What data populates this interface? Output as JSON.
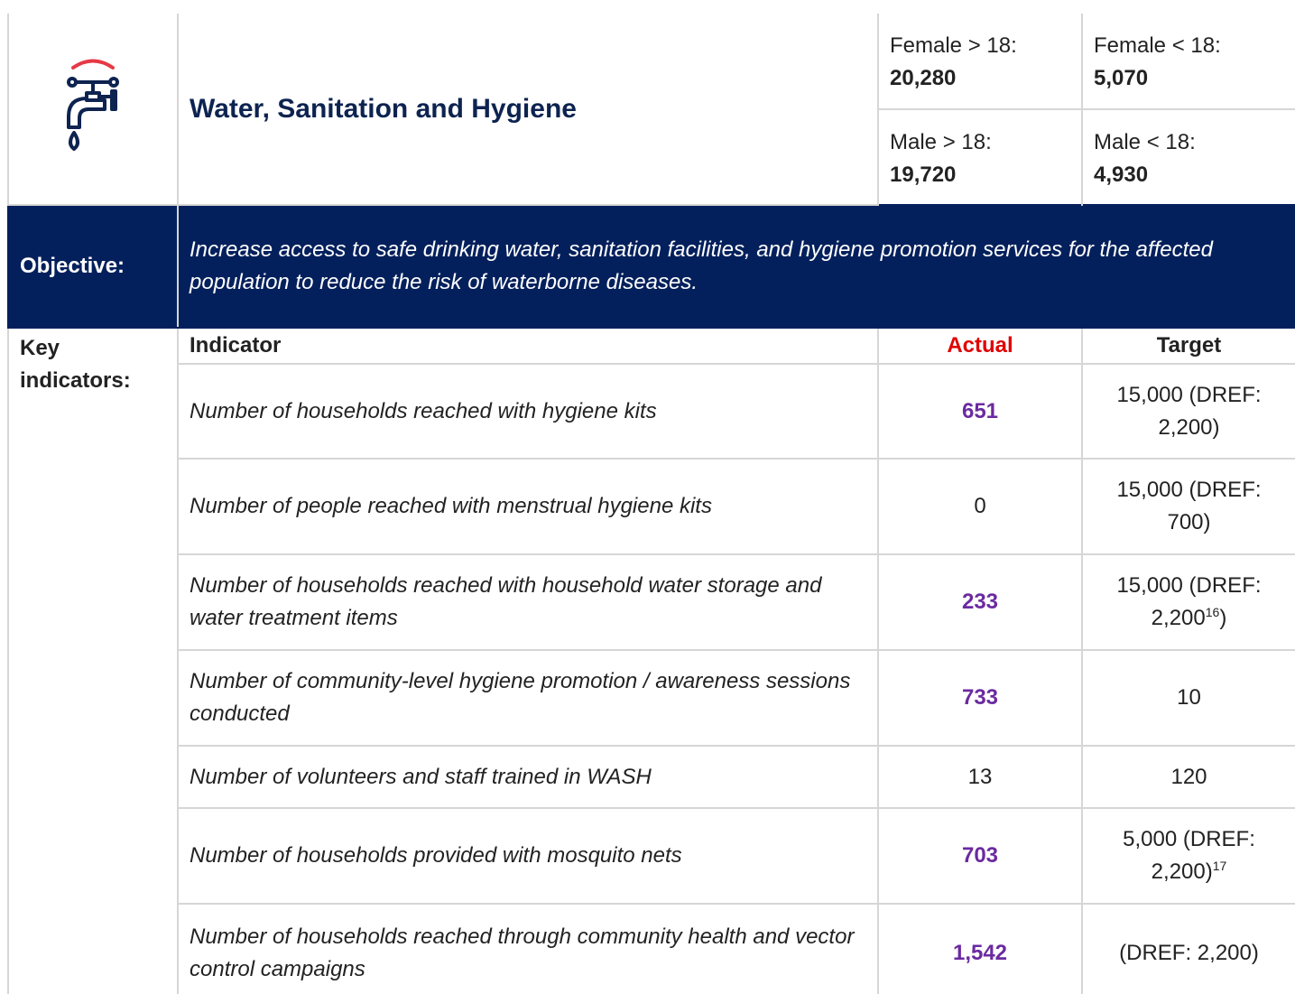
{
  "header": {
    "title": "Water, Sanitation and Hygiene",
    "demographics": [
      {
        "label": "Female > 18:",
        "value": "20,280"
      },
      {
        "label": "Female < 18:",
        "value": "5,070"
      },
      {
        "label": "Male > 18:",
        "value": "19,720"
      },
      {
        "label": "Male < 18:",
        "value": "4,930"
      }
    ]
  },
  "objective": {
    "label": "Objective:",
    "text": "Increase access to safe drinking water, sanitation facilities, and hygiene promotion services for the affected population to reduce the risk of waterborne diseases."
  },
  "indicators": {
    "label": "Key indicators:",
    "columns": [
      "Indicator",
      "Actual",
      "Target"
    ],
    "rows": [
      {
        "indicator": "Number of households reached with hygiene kits",
        "actual": "651",
        "highlight": true,
        "target": [
          "15,000 (DREF: 2,200)"
        ]
      },
      {
        "indicator": "Number of people reached with menstrual hygiene kits",
        "actual": "0",
        "highlight": false,
        "target": [
          "15,000 (DREF: 700)"
        ]
      },
      {
        "indicator": "Number of households reached with household water storage and water treatment items",
        "actual": "233",
        "highlight": true,
        "target": [
          "15,000 (DREF: 2,200",
          {
            "sup": "16"
          },
          ")"
        ]
      },
      {
        "indicator": "Number of community-level hygiene promotion / awareness sessions conducted",
        "actual": "733",
        "highlight": true,
        "target": [
          "10"
        ]
      },
      {
        "indicator": "Number of volunteers and staff trained in WASH",
        "actual": "13",
        "highlight": false,
        "target": [
          "120"
        ]
      },
      {
        "indicator": "Number of households provided with mosquito nets",
        "actual": "703",
        "highlight": true,
        "target": [
          "5,000 (DREF: 2,200)",
          {
            "sup": "17"
          }
        ]
      },
      {
        "indicator": "Number of households reached through community health and vector control campaigns",
        "actual": "1,542",
        "highlight": true,
        "target": [
          "(DREF: 2,200)"
        ]
      }
    ]
  }
}
